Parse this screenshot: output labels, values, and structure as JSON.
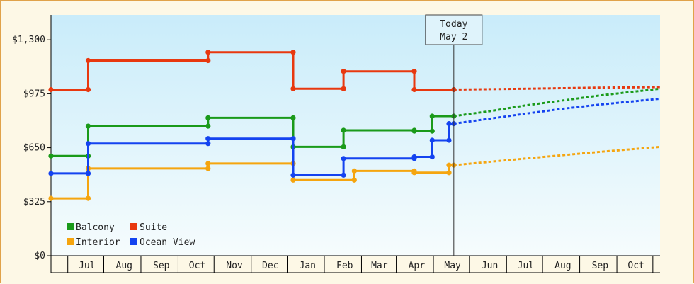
{
  "chart_data": {
    "type": "line",
    "title": "",
    "xlabel": "",
    "ylabel": "",
    "ylim": [
      0,
      1450
    ],
    "y_ticks": [
      {
        "value": 0,
        "label": "$0"
      },
      {
        "value": 325,
        "label": "$325"
      },
      {
        "value": 650,
        "label": "$650"
      },
      {
        "value": 975,
        "label": "$975"
      },
      {
        "value": 1300,
        "label": "$1,300"
      }
    ],
    "x_range": [
      "2015-06-01",
      "2016-10-21"
    ],
    "month_boundaries": [
      "2015-06-15",
      "2015-07-15",
      "2015-08-15",
      "2015-09-15",
      "2015-10-15",
      "2015-11-15",
      "2015-12-15",
      "2016-01-15",
      "2016-02-15",
      "2016-03-15",
      "2016-04-15",
      "2016-05-15",
      "2016-06-15",
      "2016-07-15",
      "2016-08-15",
      "2016-09-15",
      "2016-10-15"
    ],
    "x_ticks": [
      {
        "date": "2015-07-01",
        "label": "Jul"
      },
      {
        "date": "2015-08-01",
        "label": "Aug"
      },
      {
        "date": "2015-09-01",
        "label": "Sep"
      },
      {
        "date": "2015-10-01",
        "label": "Oct"
      },
      {
        "date": "2015-11-01",
        "label": "Nov"
      },
      {
        "date": "2015-12-01",
        "label": "Dec"
      },
      {
        "date": "2016-01-01",
        "label": "Jan"
      },
      {
        "date": "2016-02-01",
        "label": "Feb"
      },
      {
        "date": "2016-03-01",
        "label": "Mar"
      },
      {
        "date": "2016-04-01",
        "label": "Apr"
      },
      {
        "date": "2016-05-01",
        "label": "May"
      },
      {
        "date": "2016-06-01",
        "label": "Jun"
      },
      {
        "date": "2016-07-01",
        "label": "Jul"
      },
      {
        "date": "2016-08-01",
        "label": "Aug"
      },
      {
        "date": "2016-09-01",
        "label": "Sep"
      },
      {
        "date": "2016-10-01",
        "label": "Oct"
      }
    ],
    "today": {
      "line1": "Today",
      "line2": "May 2",
      "date": "2016-05-02"
    },
    "legend": {
      "position": "bottom-left"
    },
    "series": [
      {
        "name": "Balcony",
        "color": "#1a9a1a",
        "points": [
          [
            "2015-06-01",
            600
          ],
          [
            "2015-07-02",
            600
          ],
          [
            "2015-07-02",
            780
          ],
          [
            "2015-10-10",
            780
          ],
          [
            "2015-10-10",
            830
          ],
          [
            "2015-12-20",
            830
          ],
          [
            "2015-12-20",
            655
          ],
          [
            "2016-01-31",
            655
          ],
          [
            "2016-01-31",
            755
          ],
          [
            "2016-03-30",
            755
          ],
          [
            "2016-03-30",
            750
          ],
          [
            "2016-04-14",
            750
          ],
          [
            "2016-04-14",
            840
          ],
          [
            "2016-05-02",
            840
          ]
        ],
        "projection": [
          [
            "2016-05-02",
            840
          ],
          [
            "2016-06-01",
            870
          ],
          [
            "2016-07-01",
            905
          ],
          [
            "2016-08-01",
            935
          ],
          [
            "2016-09-01",
            965
          ],
          [
            "2016-10-21",
            1005
          ]
        ]
      },
      {
        "name": "Suite",
        "color": "#e8380f",
        "points": [
          [
            "2015-06-01",
            1000
          ],
          [
            "2015-07-02",
            1000
          ],
          [
            "2015-07-02",
            1175
          ],
          [
            "2015-10-10",
            1175
          ],
          [
            "2015-10-10",
            1225
          ],
          [
            "2015-12-20",
            1225
          ],
          [
            "2015-12-20",
            1005
          ],
          [
            "2016-01-31",
            1005
          ],
          [
            "2016-01-31",
            1110
          ],
          [
            "2016-03-30",
            1110
          ],
          [
            "2016-03-30",
            1000
          ],
          [
            "2016-05-02",
            1000
          ]
        ],
        "projection": [
          [
            "2016-05-02",
            1000
          ],
          [
            "2016-07-01",
            1005
          ],
          [
            "2016-09-01",
            1012
          ],
          [
            "2016-10-21",
            1015
          ]
        ]
      },
      {
        "name": "Interior",
        "color": "#f5a50f",
        "points": [
          [
            "2015-06-01",
            345
          ],
          [
            "2015-07-02",
            345
          ],
          [
            "2015-07-02",
            525
          ],
          [
            "2015-10-10",
            525
          ],
          [
            "2015-10-10",
            555
          ],
          [
            "2015-12-20",
            555
          ],
          [
            "2015-12-20",
            455
          ],
          [
            "2016-02-09",
            455
          ],
          [
            "2016-02-09",
            510
          ],
          [
            "2016-03-30",
            510
          ],
          [
            "2016-03-30",
            500
          ],
          [
            "2016-04-28",
            500
          ],
          [
            "2016-04-28",
            545
          ],
          [
            "2016-05-02",
            545
          ]
        ],
        "projection": [
          [
            "2016-05-02",
            545
          ],
          [
            "2016-07-01",
            585
          ],
          [
            "2016-09-01",
            625
          ],
          [
            "2016-10-21",
            655
          ]
        ]
      },
      {
        "name": "Ocean View",
        "color": "#1443f0",
        "points": [
          [
            "2015-06-01",
            495
          ],
          [
            "2015-07-02",
            495
          ],
          [
            "2015-07-02",
            675
          ],
          [
            "2015-10-10",
            675
          ],
          [
            "2015-10-10",
            705
          ],
          [
            "2015-12-20",
            705
          ],
          [
            "2015-12-20",
            485
          ],
          [
            "2016-01-31",
            485
          ],
          [
            "2016-01-31",
            585
          ],
          [
            "2016-03-30",
            585
          ],
          [
            "2016-03-30",
            595
          ],
          [
            "2016-04-14",
            595
          ],
          [
            "2016-04-14",
            695
          ],
          [
            "2016-04-28",
            695
          ],
          [
            "2016-04-28",
            795
          ],
          [
            "2016-05-02",
            795
          ]
        ],
        "projection": [
          [
            "2016-05-02",
            795
          ],
          [
            "2016-06-01",
            825
          ],
          [
            "2016-07-01",
            855
          ],
          [
            "2016-08-01",
            885
          ],
          [
            "2016-09-01",
            910
          ],
          [
            "2016-10-21",
            945
          ]
        ]
      }
    ]
  }
}
